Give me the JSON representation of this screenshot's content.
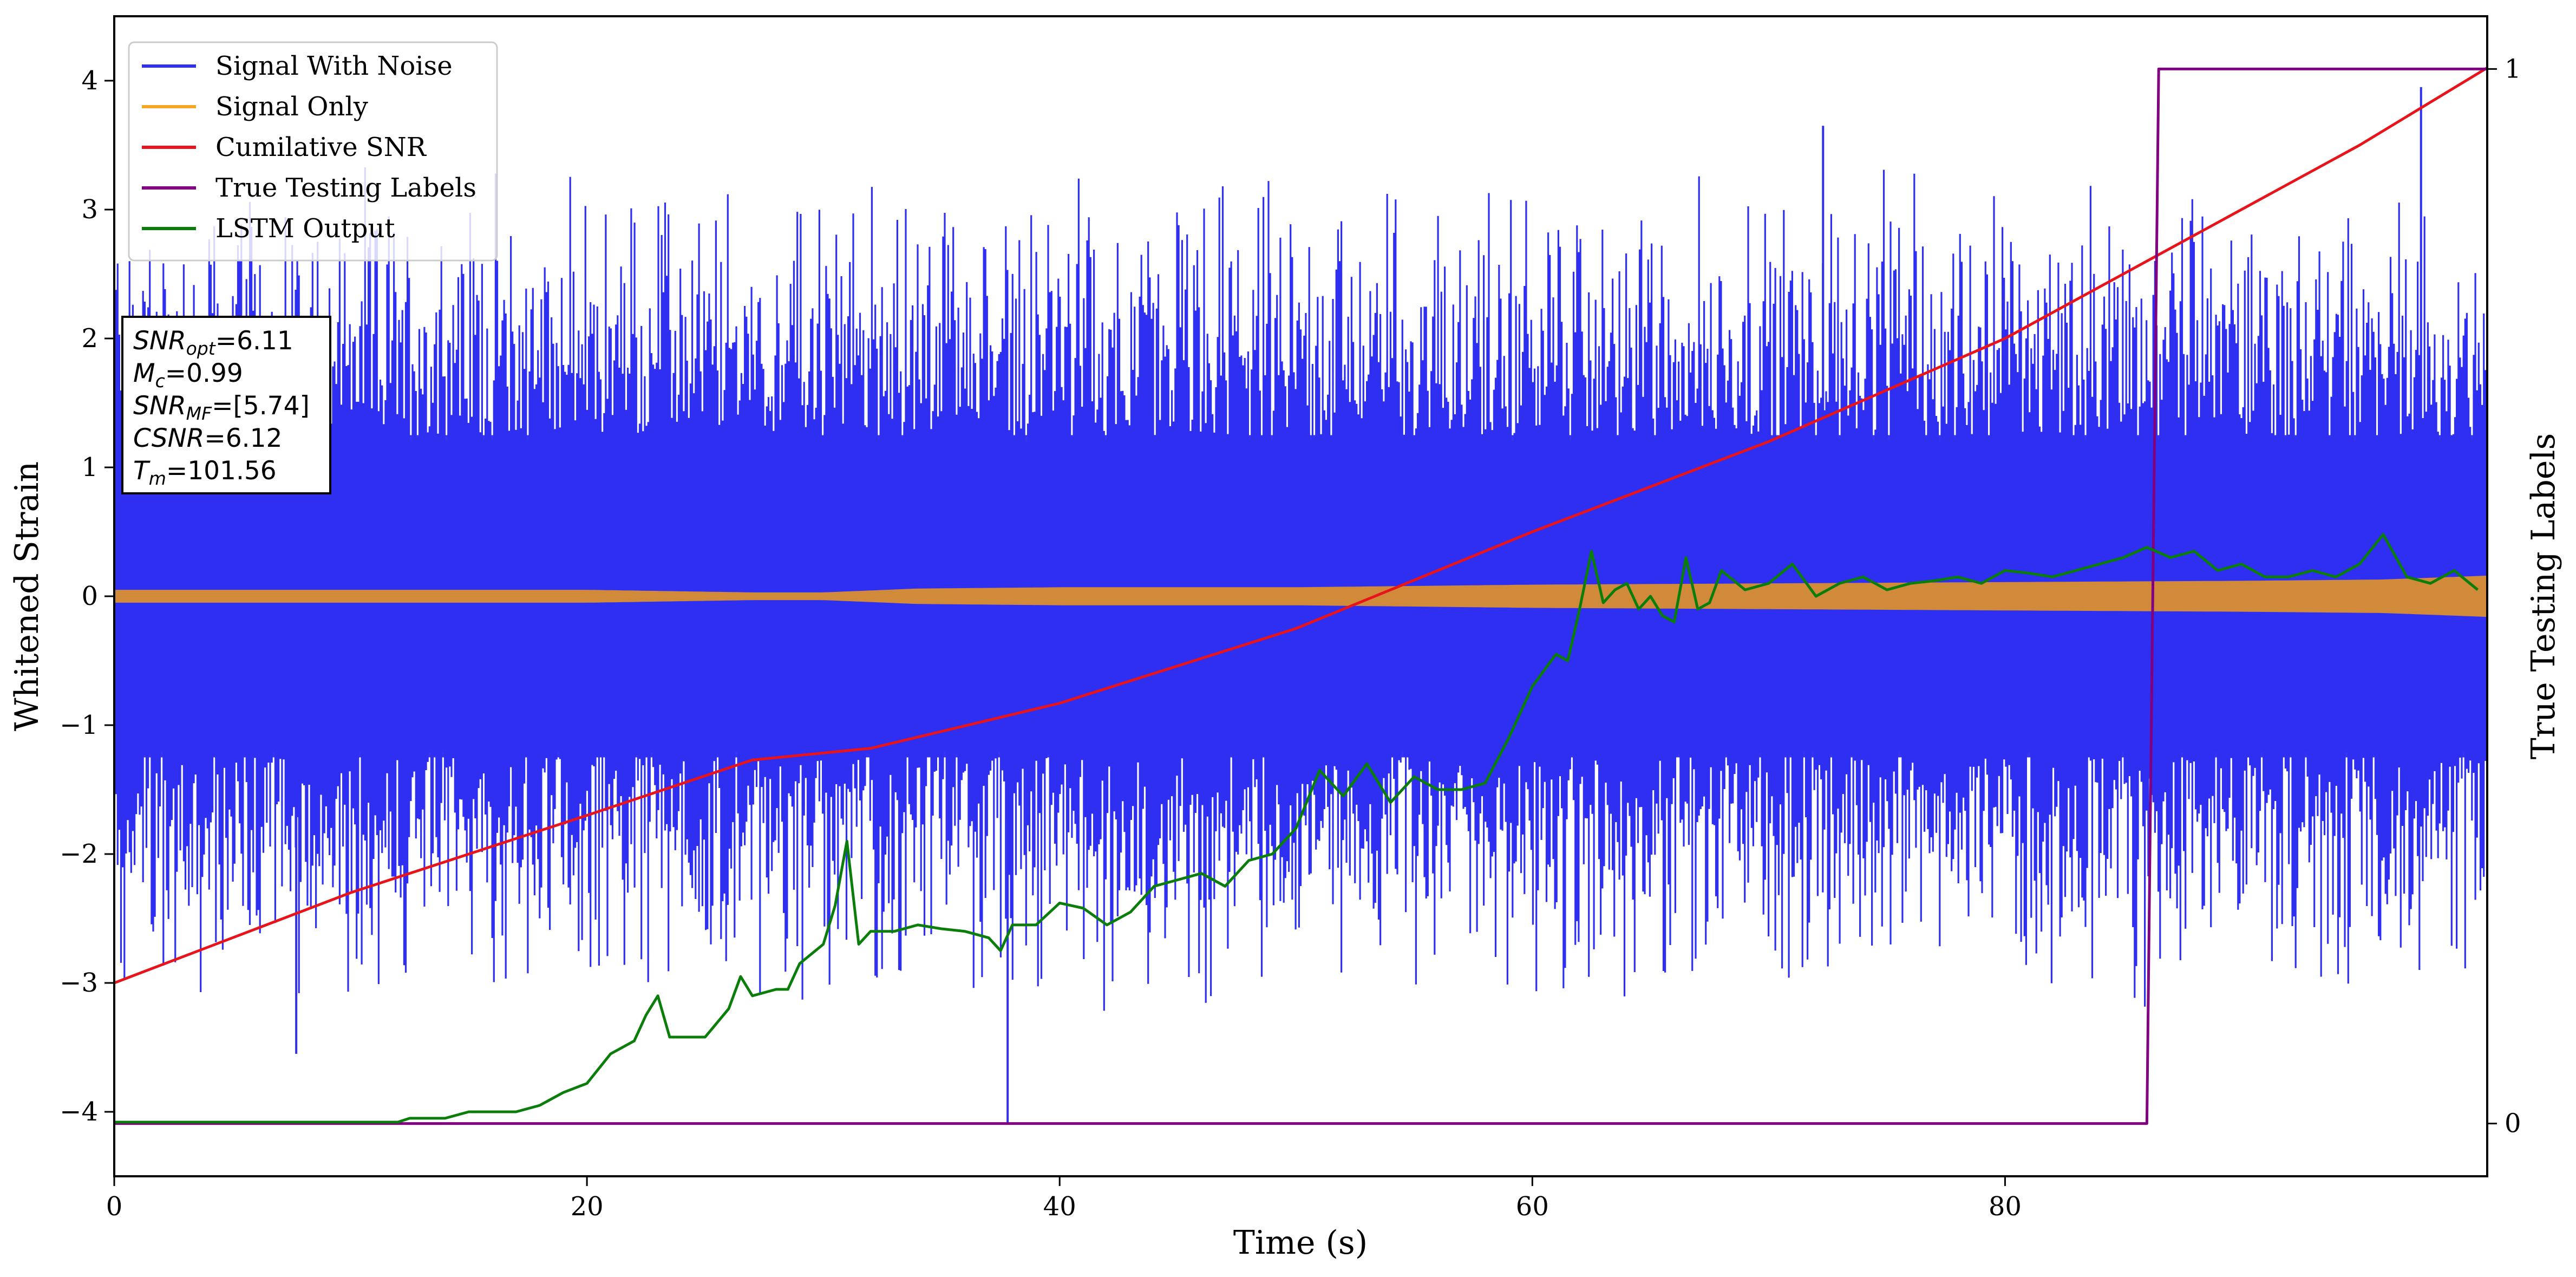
{
  "chart_data": {
    "type": "line",
    "xlabel": "Time (s)",
    "ylabel": "Whitened Strain",
    "y2label": "True Testing Labels",
    "xlim": [
      0,
      100.4
    ],
    "ylim": [
      -4.5,
      4.5
    ],
    "y2lim": [
      -0.05,
      1.05
    ],
    "x_ticks": [
      0,
      20,
      40,
      60,
      80
    ],
    "y_ticks": [
      -4,
      -3,
      -2,
      -1,
      0,
      1,
      2,
      3,
      4
    ],
    "y_tick_labels": [
      "−4",
      "−3",
      "−2",
      "−1",
      "0",
      "1",
      "2",
      "3",
      "4"
    ],
    "y2_ticks": [
      0,
      1
    ],
    "legend_position": "upper-left",
    "legend": [
      {
        "label": "Signal With Noise",
        "color": "#2f2ff2"
      },
      {
        "label": "Signal Only",
        "color": "#f5a623"
      },
      {
        "label": "Cumilative SNR",
        "color": "#e8141b"
      },
      {
        "label": "True Testing Labels",
        "color": "#800080"
      },
      {
        "label": "LSTM Output",
        "color": "#0a7d0a"
      }
    ],
    "info_box": {
      "position": "upper-left",
      "lines": [
        {
          "sym": "SNR",
          "sub": "opt",
          "value": "=6.11"
        },
        {
          "sym": "M",
          "sub": "c",
          "value": "=0.99"
        },
        {
          "sym": "SNR",
          "sub": "MF",
          "value": "=[5.74]"
        },
        {
          "sym": "CSNR",
          "sub": "",
          "value": "=6.12"
        },
        {
          "sym": "T",
          "sub": "m",
          "value": "=101.56"
        }
      ]
    },
    "series": [
      {
        "name": "Signal With Noise",
        "color": "#2f2ff2",
        "kind": "noise",
        "dense_band": [
          -1.25,
          1.25
        ],
        "spike_envelope": [
          -3.3,
          3.4
        ],
        "extreme_points": [
          {
            "x": 7.7,
            "y": -3.55
          },
          {
            "x": 37.8,
            "y": -4.1
          },
          {
            "x": 72.3,
            "y": 3.65
          },
          {
            "x": 97.6,
            "y": 3.95
          }
        ]
      },
      {
        "name": "Signal Only",
        "color": "#d08a3a",
        "kind": "envelope",
        "x": [
          0,
          10,
          20,
          27,
          30,
          34,
          40,
          50,
          60,
          70,
          80,
          90,
          96,
          100.4
        ],
        "amplitude": [
          0.05,
          0.05,
          0.05,
          0.03,
          0.03,
          0.06,
          0.07,
          0.07,
          0.09,
          0.1,
          0.11,
          0.12,
          0.13,
          0.16
        ]
      },
      {
        "name": "Cumilative SNR",
        "color": "#e8141b",
        "x": [
          0,
          10,
          20,
          27,
          32,
          40,
          50,
          60,
          70,
          80,
          90,
          95,
          100.4
        ],
        "y": [
          -3.0,
          -2.3,
          -1.7,
          -1.27,
          -1.18,
          -0.83,
          -0.25,
          0.5,
          1.2,
          2.0,
          3.0,
          3.5,
          4.1
        ]
      },
      {
        "name": "True Testing Labels",
        "color": "#800080",
        "axis": "right",
        "x": [
          0,
          86.0,
          86.5,
          100.4
        ],
        "y": [
          0,
          0,
          1,
          1
        ]
      },
      {
        "name": "LSTM Output",
        "color": "#0a7d0a",
        "x": [
          0,
          12,
          12.5,
          14,
          15,
          16,
          17,
          18,
          19,
          20,
          21,
          22,
          22.5,
          23,
          23.5,
          24,
          25,
          26,
          26.5,
          27,
          28,
          28.5,
          29,
          30,
          30.5,
          31,
          31.5,
          32,
          33,
          34,
          35,
          36,
          37,
          37.5,
          38,
          39,
          40,
          41,
          42,
          43,
          44,
          45,
          46,
          47,
          48,
          49,
          50,
          51,
          52,
          53,
          54,
          55,
          56,
          57,
          58,
          59,
          60,
          61,
          61.5,
          62,
          62.5,
          63,
          63.5,
          64,
          64.5,
          65,
          65.5,
          66,
          66.5,
          67,
          67.5,
          68,
          69,
          70,
          71,
          72,
          73,
          74,
          75,
          76,
          77,
          78,
          79,
          80,
          81,
          82,
          83,
          84,
          85,
          86,
          87,
          88,
          89,
          90,
          91,
          92,
          93,
          94,
          95,
          96,
          97,
          98,
          99,
          100
        ],
        "y": [
          -4.08,
          -4.08,
          -4.05,
          -4.05,
          -4.0,
          -4.0,
          -4.0,
          -3.95,
          -3.85,
          -3.78,
          -3.55,
          -3.45,
          -3.25,
          -3.1,
          -3.42,
          -3.42,
          -3.42,
          -3.2,
          -2.95,
          -3.1,
          -3.05,
          -3.05,
          -2.85,
          -2.7,
          -2.4,
          -1.9,
          -2.7,
          -2.6,
          -2.6,
          -2.55,
          -2.58,
          -2.6,
          -2.65,
          -2.75,
          -2.55,
          -2.55,
          -2.38,
          -2.42,
          -2.55,
          -2.45,
          -2.25,
          -2.2,
          -2.15,
          -2.25,
          -2.05,
          -2.0,
          -1.8,
          -1.35,
          -1.55,
          -1.3,
          -1.6,
          -1.4,
          -1.5,
          -1.5,
          -1.45,
          -1.1,
          -0.7,
          -0.45,
          -0.5,
          -0.1,
          0.35,
          -0.05,
          0.05,
          0.1,
          -0.1,
          0.0,
          -0.15,
          -0.2,
          0.3,
          -0.1,
          -0.05,
          0.2,
          0.05,
          0.1,
          0.25,
          0.0,
          0.1,
          0.15,
          0.05,
          0.1,
          0.12,
          0.15,
          0.1,
          0.2,
          0.18,
          0.15,
          0.2,
          0.25,
          0.3,
          0.38,
          0.3,
          0.35,
          0.2,
          0.25,
          0.15,
          0.15,
          0.2,
          0.15,
          0.25,
          0.48,
          0.15,
          0.1,
          0.2,
          0.05
        ]
      }
    ]
  }
}
